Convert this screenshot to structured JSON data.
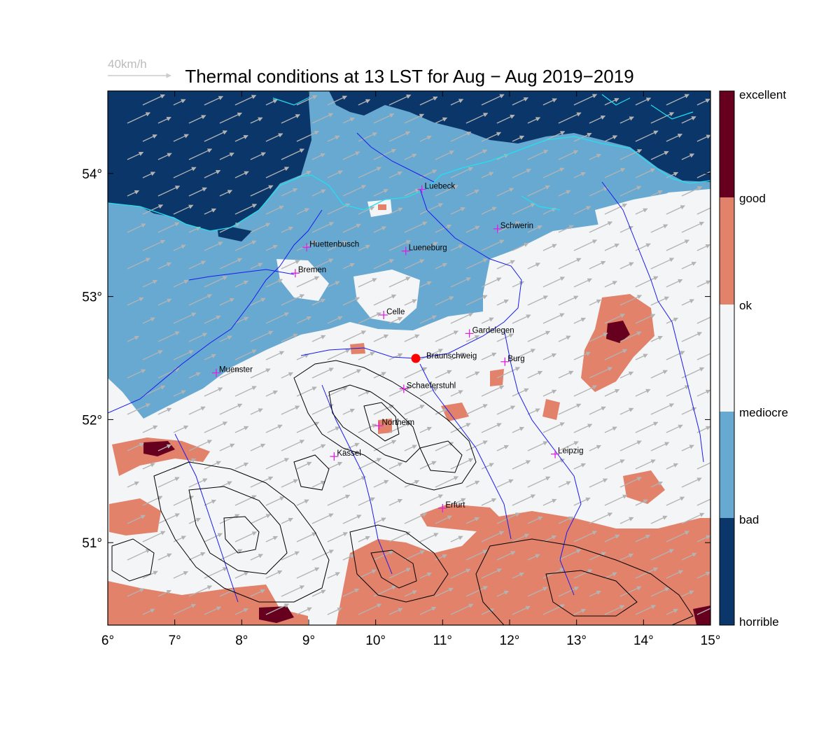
{
  "title": "Thermal conditions at 13 LST for Aug − Aug  2019−2019",
  "wind_reference": {
    "label": "40km/h",
    "color": "#bbbbbb"
  },
  "map": {
    "lon_range": [
      6,
      15
    ],
    "lat_range": [
      50.33,
      54.67
    ],
    "x_ticks": [
      {
        "value": 6,
        "label": "6°"
      },
      {
        "value": 7,
        "label": "7°"
      },
      {
        "value": 8,
        "label": "8°"
      },
      {
        "value": 9,
        "label": "9°"
      },
      {
        "value": 10,
        "label": "10°"
      },
      {
        "value": 11,
        "label": "11°"
      },
      {
        "value": 12,
        "label": "12°"
      },
      {
        "value": 13,
        "label": "13°"
      },
      {
        "value": 14,
        "label": "14°"
      },
      {
        "value": 15,
        "label": "15°"
      }
    ],
    "y_ticks": [
      {
        "value": 51,
        "label": "51°"
      },
      {
        "value": 52,
        "label": "52°"
      },
      {
        "value": 53,
        "label": "53°"
      },
      {
        "value": 54,
        "label": "54°"
      }
    ]
  },
  "colors": {
    "horrible": "#0b3669",
    "bad": "#67a9d1",
    "mediocre": "#f4f5f7",
    "ok": "#e3826a",
    "good": "#e3826a",
    "excellent": "#67001f",
    "coast": "#22e0f0",
    "river": "#1a1aee",
    "contour": "#000000",
    "city_marker": "#e020e0",
    "site_marker": "#ff0000",
    "arrow": "#b3b3b3"
  },
  "legend": {
    "labels": [
      "excellent",
      "good",
      "ok",
      "mediocre",
      "bad",
      "horrible"
    ]
  },
  "cities": [
    {
      "name": "Luebeck",
      "lon": 10.69,
      "lat": 53.87
    },
    {
      "name": "Schwerin",
      "lon": 11.82,
      "lat": 53.55
    },
    {
      "name": "Huettenbusch",
      "lon": 8.97,
      "lat": 53.4
    },
    {
      "name": "Lueneburg",
      "lon": 10.45,
      "lat": 53.37
    },
    {
      "name": "Bremen",
      "lon": 8.8,
      "lat": 53.19
    },
    {
      "name": "Celle",
      "lon": 10.12,
      "lat": 52.85
    },
    {
      "name": "Gardelegen",
      "lon": 11.4,
      "lat": 52.7
    },
    {
      "name": "Burg",
      "lon": 11.93,
      "lat": 52.47
    },
    {
      "name": "Muenster",
      "lon": 7.62,
      "lat": 52.38
    },
    {
      "name": "Schaeferstuhl",
      "lon": 10.42,
      "lat": 52.25
    },
    {
      "name": "Northeim",
      "lon": 10.05,
      "lat": 51.95
    },
    {
      "name": "Kassel",
      "lon": 9.38,
      "lat": 51.7
    },
    {
      "name": "Leipzig",
      "lon": 12.68,
      "lat": 51.72
    },
    {
      "name": "Erfurt",
      "lon": 11.0,
      "lat": 51.28
    }
  ],
  "site": {
    "name": "Braunschweig",
    "lon": 10.53,
    "lat": 52.52
  }
}
